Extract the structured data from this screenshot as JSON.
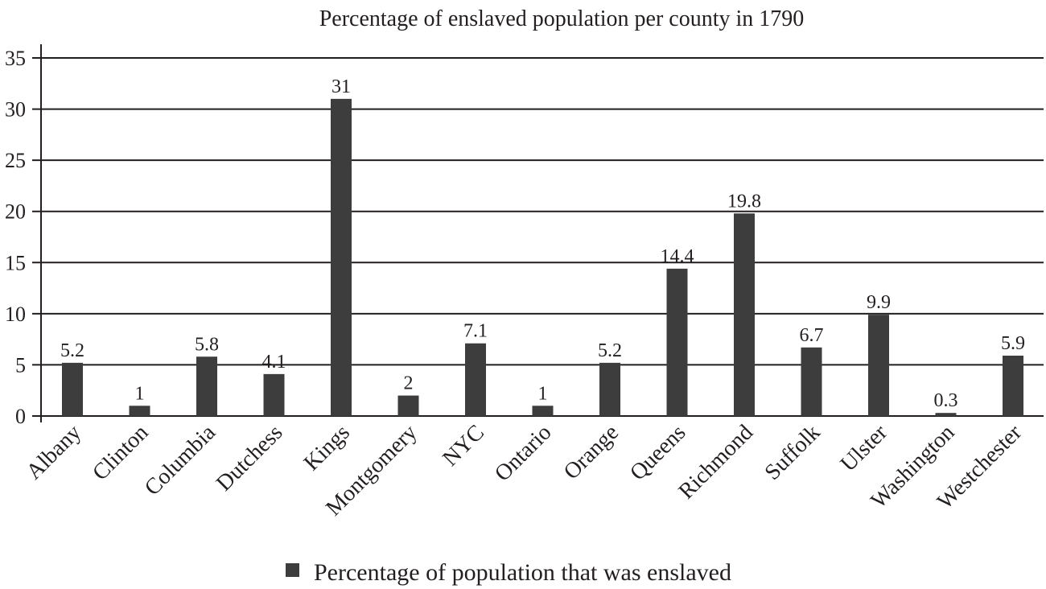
{
  "chart_data": {
    "type": "bar",
    "title": "Percentage of enslaved population per county in 1790",
    "xlabel": "",
    "ylabel": "",
    "categories": [
      "Albany",
      "Clinton",
      "Columbia",
      "Dutchess",
      "Kings",
      "Montgomery",
      "NYC",
      "Ontario",
      "Orange",
      "Queens",
      "Richmond",
      "Suffolk",
      "Ulster",
      "Washington",
      "Westchester"
    ],
    "series": [
      {
        "name": "Percentage of population that was enslaved",
        "values": [
          5.2,
          1,
          5.8,
          4.1,
          31,
          2,
          7.1,
          1,
          5.2,
          14.4,
          19.8,
          6.7,
          9.9,
          0.3,
          5.9
        ],
        "data_labels": [
          "5.2",
          "1",
          "5.8",
          "4.1",
          "31",
          "2",
          "7.1",
          "1",
          "5.2",
          "14.4",
          "19.8",
          "6.7",
          "9.9",
          "0.3",
          "5.9"
        ],
        "color": "#3d3d3d"
      }
    ],
    "ylim": [
      0,
      35
    ],
    "yticks": [
      "0",
      "5",
      "10",
      "15",
      "20",
      "25",
      "30",
      "35"
    ],
    "grid": true,
    "legend": "bottom"
  }
}
